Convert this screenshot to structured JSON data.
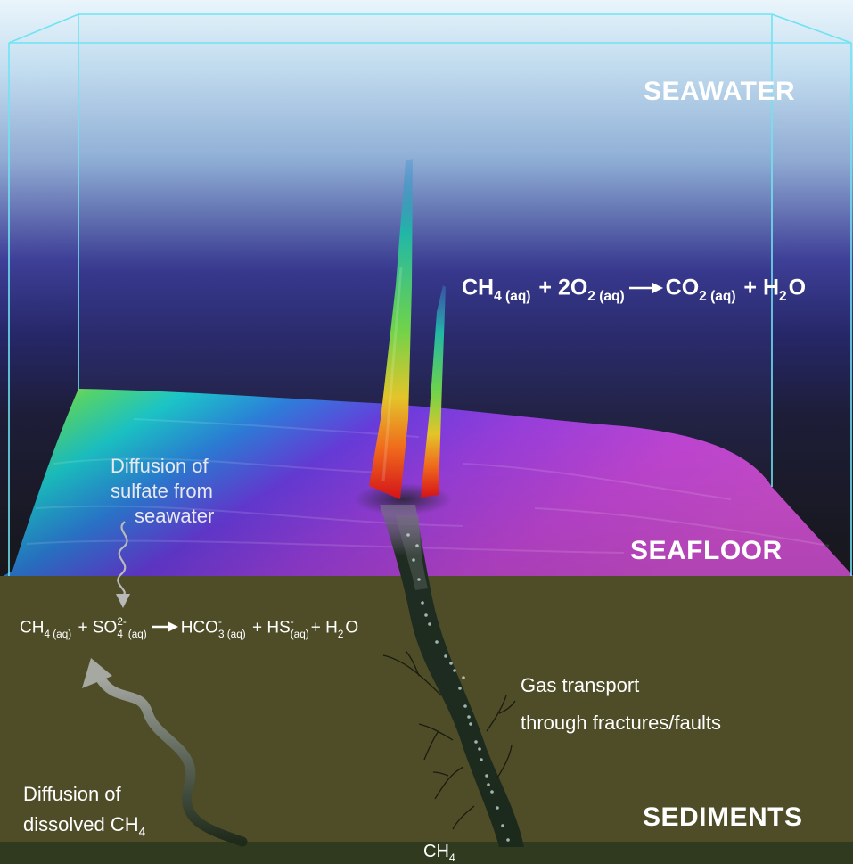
{
  "labels": {
    "seawater": "SEAWATER",
    "seafloor": "SEAFLOOR",
    "sediments": "SEDIMENTS",
    "diffusion_sulfate": [
      "Diffusion of",
      "sulfate from",
      "seawater"
    ],
    "gas_transport": [
      "Gas transport",
      "through fractures/faults"
    ],
    "diffusion_ch4": [
      "Diffusion of",
      "dissolved CH"
    ],
    "diffusion_ch4_sub": "4",
    "bottom_source": "CH",
    "bottom_source_sub": "4"
  },
  "equations": {
    "aerobic": {
      "terms": [
        {
          "text": "CH",
          "sub": "4 (aq)"
        },
        {
          "text": " + 2O",
          "sub": "2 (aq)"
        },
        {
          "arrow": true
        },
        {
          "text": "CO",
          "sub": "2 (aq)"
        },
        {
          "text": " + H",
          "sub": "2"
        },
        {
          "text": "O"
        }
      ]
    },
    "anaerobic": {
      "terms": [
        {
          "text": "CH",
          "sub": "4 (aq)"
        },
        {
          "text": " + SO",
          "sub": "4",
          "sup": "2-"
        },
        {
          "sub": "(aq)"
        },
        {
          "arrow": true
        },
        {
          "text": "HCO",
          "sub": "3 (aq)",
          "sup": "-"
        },
        {
          "text": " + HS",
          "sub": "(aq)",
          "sup": "-"
        },
        {
          "text": "+ H",
          "sub": "2"
        },
        {
          "text": "O"
        }
      ]
    }
  },
  "colors": {
    "box_edge": "#6fe3f2",
    "sediment": "#4e4d27",
    "sediment_bottom": "#2f3a1e",
    "water_top": "#e7f3fb",
    "water_bottom": "#1a1a1d",
    "label": "#ffffff"
  }
}
